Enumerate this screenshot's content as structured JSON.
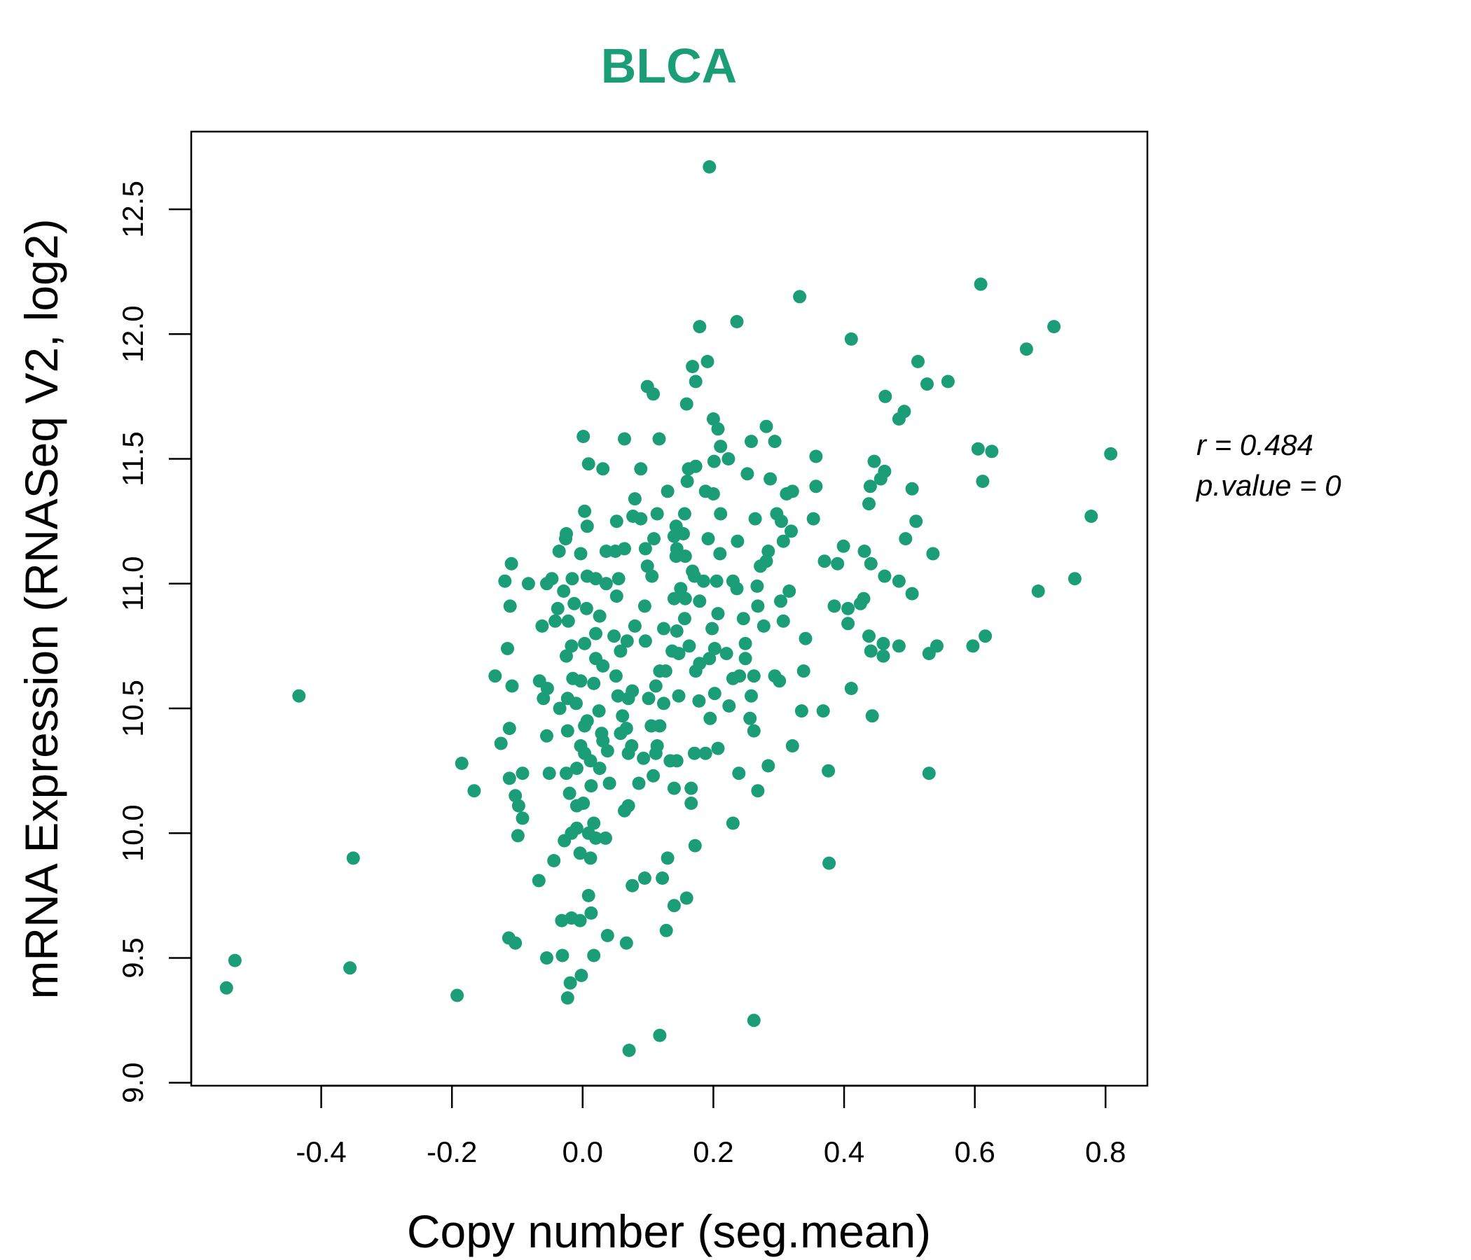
{
  "chart_data": {
    "type": "scatter",
    "title": "BLCA",
    "xlabel": "Copy number (seg.mean)",
    "ylabel": "mRNA Expression (RNASeq V2, log2)",
    "xlim": [
      -0.57,
      0.87
    ],
    "ylim": [
      8.99,
      12.82
    ],
    "xticks": [
      -0.4,
      -0.2,
      0.0,
      0.2,
      0.4,
      0.6,
      0.8
    ],
    "xtick_labels": [
      "-0.4",
      "-0.2",
      "0.0",
      "0.2",
      "0.4",
      "0.6",
      "0.8"
    ],
    "yticks": [
      9.0,
      9.5,
      10.0,
      10.5,
      11.0,
      11.5,
      12.0,
      12.5
    ],
    "ytick_labels": [
      "9.0",
      "9.5",
      "10.0",
      "10.5",
      "11.0",
      "11.5",
      "12.0",
      "12.5"
    ],
    "grid": false,
    "point_color": "#1b9e77",
    "annotations": {
      "r": "r = 0.484",
      "p": "p.value = 0"
    },
    "points": [
      [
        0.194,
        12.67
      ],
      [
        0.609,
        12.2
      ],
      [
        0.332,
        12.15
      ],
      [
        0.236,
        12.05
      ],
      [
        0.179,
        12.03
      ],
      [
        0.721,
        12.03
      ],
      [
        0.411,
        11.98
      ],
      [
        0.679,
        11.94
      ],
      [
        0.513,
        11.89
      ],
      [
        0.191,
        11.89
      ],
      [
        0.168,
        11.87
      ],
      [
        0.559,
        11.81
      ],
      [
        0.527,
        11.8
      ],
      [
        0.173,
        11.81
      ],
      [
        0.099,
        11.79
      ],
      [
        0.108,
        11.76
      ],
      [
        0.463,
        11.75
      ],
      [
        0.159,
        11.72
      ],
      [
        0.492,
        11.69
      ],
      [
        0.484,
        11.66
      ],
      [
        0.2,
        11.66
      ],
      [
        0.207,
        11.62
      ],
      [
        0.281,
        11.63
      ],
      [
        0.001,
        11.59
      ],
      [
        0.064,
        11.58
      ],
      [
        0.117,
        11.58
      ],
      [
        0.258,
        11.57
      ],
      [
        0.294,
        11.57
      ],
      [
        0.211,
        11.55
      ],
      [
        0.605,
        11.54
      ],
      [
        0.626,
        11.53
      ],
      [
        0.808,
        11.52
      ],
      [
        0.357,
        11.51
      ],
      [
        0.223,
        11.5
      ],
      [
        0.201,
        11.49
      ],
      [
        0.446,
        11.49
      ],
      [
        0.009,
        11.48
      ],
      [
        0.173,
        11.47
      ],
      [
        0.031,
        11.46
      ],
      [
        0.162,
        11.46
      ],
      [
        0.089,
        11.46
      ],
      [
        0.462,
        11.45
      ],
      [
        0.252,
        11.44
      ],
      [
        0.456,
        11.42
      ],
      [
        0.287,
        11.42
      ],
      [
        0.16,
        11.41
      ],
      [
        0.612,
        11.41
      ],
      [
        0.44,
        11.39
      ],
      [
        0.357,
        11.39
      ],
      [
        0.504,
        11.38
      ],
      [
        0.321,
        11.37
      ],
      [
        0.188,
        11.37
      ],
      [
        0.13,
        11.37
      ],
      [
        0.312,
        11.36
      ],
      [
        0.2,
        11.36
      ],
      [
        0.08,
        11.34
      ],
      [
        0.438,
        11.32
      ],
      [
        0.003,
        11.29
      ],
      [
        0.211,
        11.28
      ],
      [
        0.156,
        11.28
      ],
      [
        0.114,
        11.28
      ],
      [
        0.297,
        11.28
      ],
      [
        0.778,
        11.27
      ],
      [
        0.077,
        11.27
      ],
      [
        0.089,
        11.26
      ],
      [
        0.264,
        11.26
      ],
      [
        0.353,
        11.26
      ],
      [
        0.51,
        11.25
      ],
      [
        0.304,
        11.25
      ],
      [
        0.052,
        11.25
      ],
      [
        0.007,
        11.23
      ],
      [
        0.143,
        11.23
      ],
      [
        -0.025,
        11.2
      ],
      [
        0.154,
        11.2
      ],
      [
        0.319,
        11.21
      ],
      [
        0.14,
        11.19
      ],
      [
        -0.026,
        11.18
      ],
      [
        0.109,
        11.18
      ],
      [
        0.494,
        11.18
      ],
      [
        0.192,
        11.18
      ],
      [
        0.237,
        11.17
      ],
      [
        0.307,
        11.17
      ],
      [
        0.064,
        11.14
      ],
      [
        0.399,
        11.15
      ],
      [
        0.096,
        11.14
      ],
      [
        0.05,
        11.13
      ],
      [
        0.036,
        11.13
      ],
      [
        0.144,
        11.14
      ],
      [
        -0.036,
        11.13
      ],
      [
        0.284,
        11.13
      ],
      [
        0.431,
        11.13
      ],
      [
        -0.003,
        11.12
      ],
      [
        0.21,
        11.12
      ],
      [
        0.157,
        11.11
      ],
      [
        0.143,
        11.11
      ],
      [
        0.536,
        11.12
      ],
      [
        0.281,
        11.09
      ],
      [
        0.37,
        11.09
      ],
      [
        0.39,
        11.08
      ],
      [
        0.441,
        11.08
      ],
      [
        -0.109,
        11.08
      ],
      [
        0.272,
        11.07
      ],
      [
        0.099,
        11.07
      ],
      [
        0.168,
        11.05
      ],
      [
        0.171,
        11.03
      ],
      [
        0.106,
        11.03
      ],
      [
        0.462,
        11.03
      ],
      [
        0.753,
        11.02
      ],
      [
        -0.016,
        11.02
      ],
      [
        0.02,
        11.02
      ],
      [
        0.055,
        11.02
      ],
      [
        -0.047,
        11.02
      ],
      [
        -0.083,
        11.0
      ],
      [
        -0.119,
        11.01
      ],
      [
        0.007,
        11.03
      ],
      [
        0.23,
        11.01
      ],
      [
        0.205,
        11.01
      ],
      [
        0.185,
        11.01
      ],
      [
        0.484,
        11.01
      ],
      [
        0.036,
        11.0
      ],
      [
        -0.055,
        11.0
      ],
      [
        0.504,
        10.96
      ],
      [
        0.316,
        10.97
      ],
      [
        0.697,
        10.97
      ],
      [
        0.15,
        10.98
      ],
      [
        -0.029,
        10.97
      ],
      [
        0.267,
        10.99
      ],
      [
        0.236,
        10.98
      ],
      [
        0.157,
        10.94
      ],
      [
        0.052,
        10.95
      ],
      [
        0.43,
        10.94
      ],
      [
        0.303,
        10.93
      ],
      [
        -0.013,
        10.92
      ],
      [
        -0.111,
        10.91
      ],
      [
        0.095,
        10.91
      ],
      [
        0.268,
        10.91
      ],
      [
        0.425,
        10.92
      ],
      [
        0.385,
        10.91
      ],
      [
        0.406,
        10.9
      ],
      [
        0.179,
        10.93
      ],
      [
        0.14,
        10.94
      ],
      [
        0.006,
        10.9
      ],
      [
        -0.038,
        10.9
      ],
      [
        0.026,
        10.87
      ],
      [
        0.207,
        10.88
      ],
      [
        0.156,
        10.86
      ],
      [
        0.246,
        10.86
      ],
      [
        0.307,
        10.85
      ],
      [
        0.406,
        10.84
      ],
      [
        -0.062,
        10.83
      ],
      [
        -0.042,
        10.85
      ],
      [
        -0.022,
        10.85
      ],
      [
        0.08,
        10.83
      ],
      [
        0.144,
        10.81
      ],
      [
        0.198,
        10.82
      ],
      [
        0.277,
        10.83
      ],
      [
        0.124,
        10.82
      ],
      [
        0.02,
        10.8
      ],
      [
        0.048,
        10.79
      ],
      [
        0.096,
        10.77
      ],
      [
        0.438,
        10.79
      ],
      [
        0.616,
        10.79
      ],
      [
        0.341,
        10.78
      ],
      [
        0.46,
        10.76
      ],
      [
        0.003,
        10.76
      ],
      [
        -0.017,
        10.75
      ],
      [
        0.068,
        10.77
      ],
      [
        0.163,
        10.75
      ],
      [
        0.249,
        10.76
      ],
      [
        0.441,
        10.73
      ],
      [
        0.597,
        10.75
      ],
      [
        0.542,
        10.75
      ],
      [
        -0.115,
        10.74
      ],
      [
        0.484,
        10.75
      ],
      [
        0.137,
        10.73
      ],
      [
        0.202,
        10.74
      ],
      [
        0.058,
        10.73
      ],
      [
        0.22,
        10.72
      ],
      [
        0.53,
        10.72
      ],
      [
        0.46,
        10.71
      ],
      [
        -0.025,
        10.71
      ],
      [
        0.147,
        10.72
      ],
      [
        0.02,
        10.7
      ],
      [
        0.194,
        10.7
      ],
      [
        0.249,
        10.7
      ],
      [
        0.031,
        10.67
      ],
      [
        0.179,
        10.68
      ],
      [
        0.173,
        10.65
      ],
      [
        0.118,
        10.65
      ],
      [
        0.127,
        10.65
      ],
      [
        0.338,
        10.65
      ],
      [
        -0.015,
        10.62
      ],
      [
        -0.134,
        10.63
      ],
      [
        0.051,
        10.63
      ],
      [
        0.23,
        10.62
      ],
      [
        0.294,
        10.63
      ],
      [
        0.262,
        10.63
      ],
      [
        0.301,
        10.61
      ],
      [
        -0.066,
        10.61
      ],
      [
        -0.003,
        10.61
      ],
      [
        0.24,
        10.63
      ],
      [
        -0.108,
        10.59
      ],
      [
        -0.054,
        10.58
      ],
      [
        0.017,
        10.6
      ],
      [
        0.112,
        10.59
      ],
      [
        0.411,
        10.58
      ],
      [
        0.076,
        10.57
      ],
      [
        0.202,
        10.56
      ],
      [
        0.054,
        10.55
      ],
      [
        0.147,
        10.55
      ],
      [
        0.258,
        10.55
      ],
      [
        0.07,
        10.54
      ],
      [
        0.101,
        10.54
      ],
      [
        -0.06,
        10.54
      ],
      [
        -0.023,
        10.54
      ],
      [
        0.178,
        10.53
      ],
      [
        0.124,
        10.52
      ],
      [
        -0.01,
        10.52
      ],
      [
        -0.434,
        10.55
      ],
      [
        0.224,
        10.51
      ],
      [
        -0.035,
        10.5
      ],
      [
        0.025,
        10.49
      ],
      [
        0.335,
        10.49
      ],
      [
        0.368,
        10.49
      ],
      [
        0.443,
        10.47
      ],
      [
        0.195,
        10.46
      ],
      [
        0.256,
        10.46
      ],
      [
        0.061,
        10.47
      ],
      [
        0.007,
        10.45
      ],
      [
        0.003,
        10.43
      ],
      [
        0.105,
        10.43
      ],
      [
        0.118,
        10.43
      ],
      [
        -0.112,
        10.42
      ],
      [
        0.067,
        10.42
      ],
      [
        0.262,
        10.41
      ],
      [
        -0.023,
        10.41
      ],
      [
        0.029,
        10.4
      ],
      [
        0.058,
        10.4
      ],
      [
        -0.055,
        10.39
      ],
      [
        0.031,
        10.37
      ],
      [
        -0.125,
        10.36
      ],
      [
        0.075,
        10.35
      ],
      [
        -0.003,
        10.35
      ],
      [
        0.114,
        10.35
      ],
      [
        0.038,
        10.33
      ],
      [
        0.321,
        10.35
      ],
      [
        0.207,
        10.34
      ],
      [
        0.188,
        10.32
      ],
      [
        0.171,
        10.32
      ],
      [
        0.112,
        10.32
      ],
      [
        0.07,
        10.32
      ],
      [
        0.003,
        10.32
      ],
      [
        0.134,
        10.29
      ],
      [
        0.144,
        10.29
      ],
      [
        0.093,
        10.3
      ],
      [
        0.012,
        10.29
      ],
      [
        -0.185,
        10.28
      ],
      [
        0.284,
        10.27
      ],
      [
        -0.009,
        10.26
      ],
      [
        0.026,
        10.26
      ],
      [
        -0.092,
        10.24
      ],
      [
        -0.051,
        10.24
      ],
      [
        -0.025,
        10.24
      ],
      [
        0.376,
        10.25
      ],
      [
        0.53,
        10.24
      ],
      [
        0.239,
        10.24
      ],
      [
        -0.112,
        10.22
      ],
      [
        0.108,
        10.23
      ],
      [
        0.041,
        10.2
      ],
      [
        0.086,
        10.2
      ],
      [
        0.013,
        10.19
      ],
      [
        0.14,
        10.18
      ],
      [
        0.166,
        10.18
      ],
      [
        -0.166,
        10.17
      ],
      [
        0.268,
        10.17
      ],
      [
        -0.02,
        10.16
      ],
      [
        -0.103,
        10.15
      ],
      [
        0.166,
        10.12
      ],
      [
        0.001,
        10.12
      ],
      [
        -0.009,
        10.11
      ],
      [
        -0.098,
        10.11
      ],
      [
        0.07,
        10.11
      ],
      [
        0.064,
        10.09
      ],
      [
        -0.092,
        10.06
      ],
      [
        0.23,
        10.04
      ],
      [
        0.017,
        10.04
      ],
      [
        -0.009,
        10.02
      ],
      [
        -0.017,
        10.0
      ],
      [
        0.009,
        10.0
      ],
      [
        -0.099,
        9.99
      ],
      [
        0.035,
        9.98
      ],
      [
        -0.028,
        9.97
      ],
      [
        0.02,
        9.98
      ],
      [
        0.172,
        9.95
      ],
      [
        -0.004,
        9.92
      ],
      [
        0.012,
        9.9
      ],
      [
        -0.351,
        9.9
      ],
      [
        0.377,
        9.88
      ],
      [
        -0.044,
        9.89
      ],
      [
        0.13,
        9.9
      ],
      [
        -0.067,
        9.81
      ],
      [
        0.095,
        9.82
      ],
      [
        0.122,
        9.82
      ],
      [
        0.076,
        9.79
      ],
      [
        0.159,
        9.74
      ],
      [
        0.009,
        9.75
      ],
      [
        0.14,
        9.71
      ],
      [
        0.013,
        9.68
      ],
      [
        -0.017,
        9.66
      ],
      [
        -0.032,
        9.65
      ],
      [
        -0.004,
        9.65
      ],
      [
        0.128,
        9.61
      ],
      [
        0.038,
        9.59
      ],
      [
        -0.113,
        9.58
      ],
      [
        -0.103,
        9.56
      ],
      [
        0.067,
        9.56
      ],
      [
        -0.055,
        9.5
      ],
      [
        -0.031,
        9.51
      ],
      [
        0.017,
        9.51
      ],
      [
        -0.532,
        9.49
      ],
      [
        -0.356,
        9.46
      ],
      [
        -0.019,
        9.4
      ],
      [
        -0.002,
        9.43
      ],
      [
        -0.545,
        9.38
      ],
      [
        -0.192,
        9.35
      ],
      [
        -0.023,
        9.34
      ],
      [
        0.262,
        9.25
      ],
      [
        0.118,
        9.19
      ],
      [
        0.071,
        9.13
      ]
    ]
  }
}
